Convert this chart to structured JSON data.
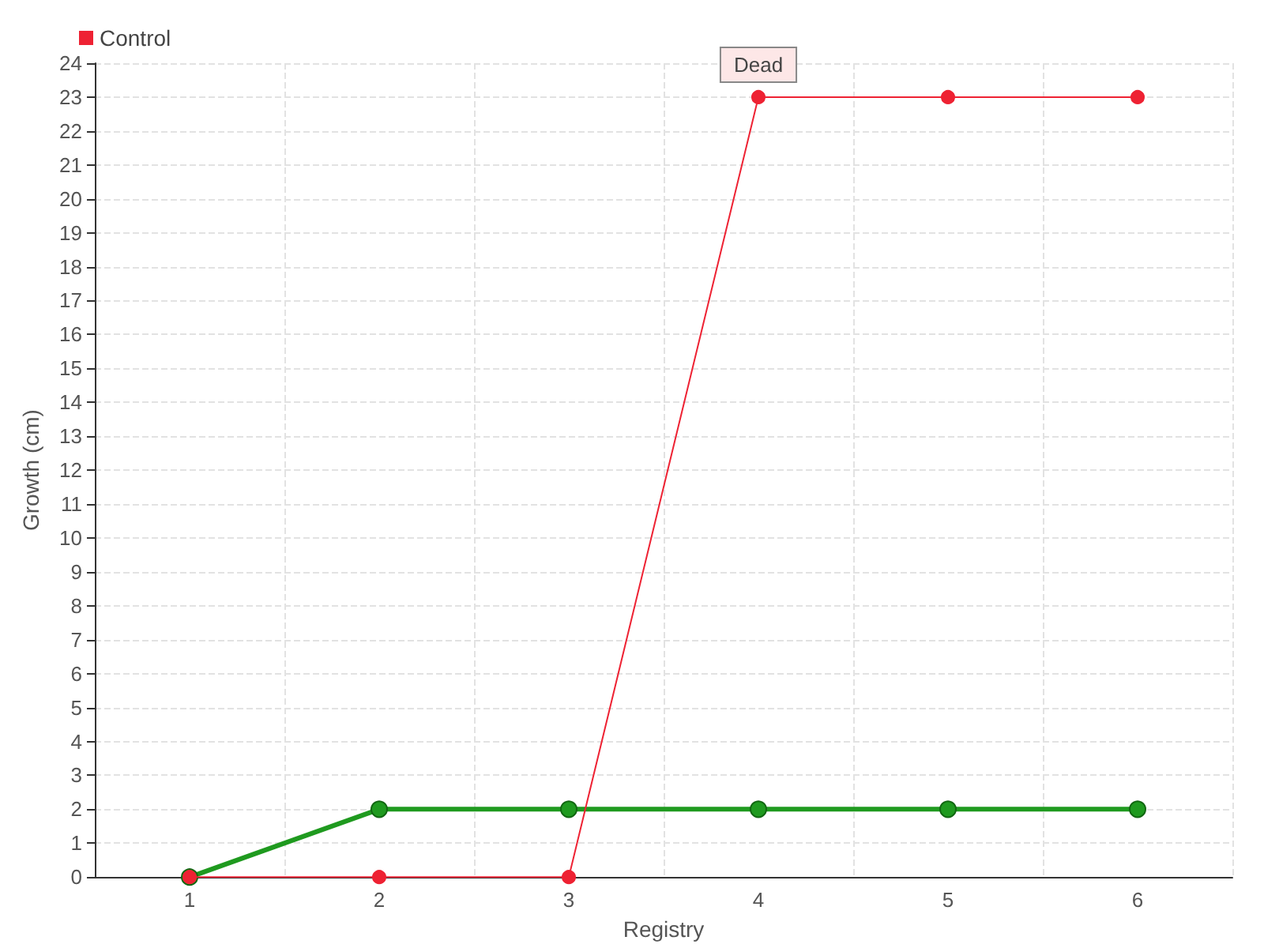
{
  "chart_data": {
    "type": "line",
    "xlabel": "Registry",
    "ylabel": "Growth (cm)",
    "categories": [
      "1",
      "2",
      "3",
      "4",
      "5",
      "6"
    ],
    "series": [
      {
        "color": "#1f9a1f",
        "values": [
          0,
          2,
          2,
          2,
          2,
          2
        ]
      },
      {
        "name": "Control",
        "color": "#ee2233",
        "values": [
          0,
          0,
          0,
          23,
          23,
          23
        ]
      }
    ],
    "ylim": [
      0,
      24
    ],
    "yticks": [
      0,
      1,
      2,
      3,
      4,
      5,
      6,
      7,
      8,
      9,
      10,
      11,
      12,
      13,
      14,
      15,
      16,
      17,
      18,
      19,
      20,
      21,
      22,
      23,
      24
    ],
    "grid": true,
    "legend": "top left",
    "marker": "circle",
    "line_style": "solid",
    "annotations": [
      {
        "text": "Dead",
        "x": "4",
        "y": 23
      }
    ]
  }
}
